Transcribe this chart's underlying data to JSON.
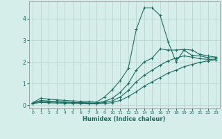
{
  "xlabel": "Humidex (Indice chaleur)",
  "bg_color": "#d6eeea",
  "grid_color": "#b8d8d2",
  "line_color": "#1a6e62",
  "xlim": [
    -0.5,
    23.5
  ],
  "ylim": [
    -0.15,
    4.8
  ],
  "xticks": [
    0,
    1,
    2,
    3,
    4,
    5,
    6,
    7,
    8,
    9,
    10,
    11,
    12,
    13,
    14,
    15,
    16,
    17,
    18,
    19,
    20,
    21,
    22,
    23
  ],
  "yticks": [
    0,
    1,
    2,
    3,
    4
  ],
  "series": [
    {
      "x": [
        0,
        1,
        2,
        3,
        4,
        5,
        6,
        7,
        8,
        9,
        10,
        11,
        12,
        13,
        14,
        15,
        16,
        17,
        18,
        19,
        20,
        21,
        22,
        23
      ],
      "y": [
        0.12,
        0.32,
        0.28,
        0.25,
        0.22,
        0.2,
        0.18,
        0.16,
        0.14,
        0.38,
        0.72,
        1.15,
        1.7,
        3.5,
        4.5,
        4.5,
        4.15,
        2.95,
        2.0,
        2.55,
        2.3,
        2.28,
        2.2,
        2.18
      ]
    },
    {
      "x": [
        0,
        1,
        2,
        3,
        4,
        5,
        6,
        7,
        8,
        9,
        10,
        11,
        12,
        13,
        14,
        15,
        16,
        17,
        18,
        19,
        20,
        21,
        22,
        23
      ],
      "y": [
        0.1,
        0.22,
        0.19,
        0.17,
        0.15,
        0.13,
        0.12,
        0.11,
        0.1,
        0.18,
        0.32,
        0.6,
        1.0,
        1.62,
        2.0,
        2.18,
        2.6,
        2.55,
        2.55,
        2.58,
        2.55,
        2.35,
        2.28,
        2.22
      ]
    },
    {
      "x": [
        0,
        1,
        2,
        3,
        4,
        5,
        6,
        7,
        8,
        9,
        10,
        11,
        12,
        13,
        14,
        15,
        16,
        17,
        18,
        19,
        20,
        21,
        22,
        23
      ],
      "y": [
        0.09,
        0.18,
        0.15,
        0.14,
        0.12,
        0.11,
        0.1,
        0.09,
        0.08,
        0.13,
        0.2,
        0.38,
        0.68,
        1.08,
        1.38,
        1.62,
        1.85,
        2.05,
        2.18,
        2.28,
        2.22,
        2.15,
        2.12,
        2.1
      ]
    },
    {
      "x": [
        0,
        1,
        2,
        3,
        4,
        5,
        6,
        7,
        8,
        9,
        10,
        11,
        12,
        13,
        14,
        15,
        16,
        17,
        18,
        19,
        20,
        21,
        22,
        23
      ],
      "y": [
        0.07,
        0.13,
        0.11,
        0.1,
        0.09,
        0.08,
        0.07,
        0.06,
        0.06,
        0.08,
        0.12,
        0.22,
        0.4,
        0.62,
        0.88,
        1.08,
        1.28,
        1.48,
        1.62,
        1.78,
        1.88,
        1.98,
        2.05,
        2.1
      ]
    }
  ]
}
